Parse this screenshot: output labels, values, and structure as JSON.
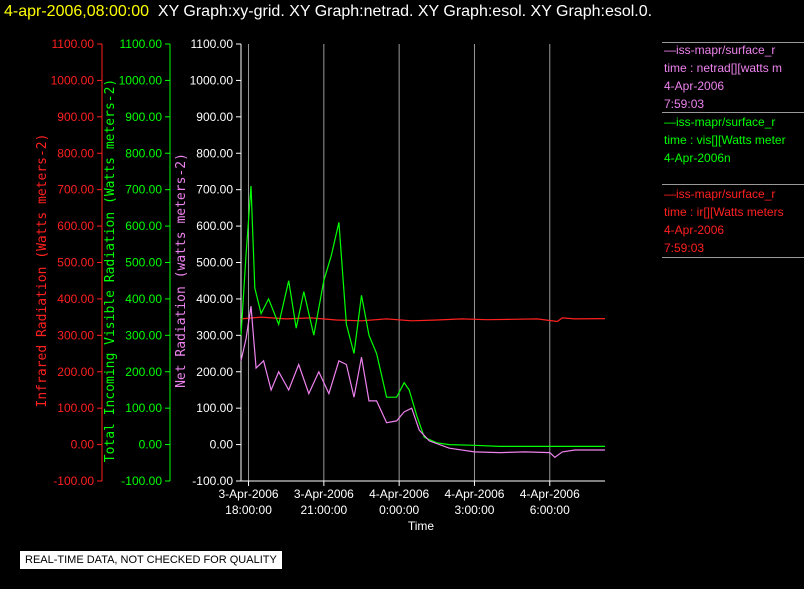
{
  "header": {
    "timestamp": "4-apr-2006,08:00:00",
    "graphs": "XY Graph:xy-grid.  XY Graph:netrad.  XY Graph:esol.  XY Graph:esol.0."
  },
  "legend": [
    {
      "name": "netrad",
      "color": "#ee82ee",
      "lines": [
        "—iss-mapr/surface_r",
        "time : netrad[][watts m",
        "4-Apr-2006",
        "7:59:03"
      ]
    },
    {
      "name": "vis",
      "color": "#00ff00",
      "lines": [
        "—iss-mapr/surface_r",
        "time : vis[][Watts meter",
        "4-Apr-2006n"
      ]
    },
    {
      "name": "ir",
      "color": "#ff2020",
      "lines": [
        "—iss-mapr/surface_r",
        "time : ir[][Watts meters",
        "4-Apr-2006",
        "7:59:03"
      ]
    }
  ],
  "quality_note": "REAL-TIME DATA, NOT CHECKED FOR QUALITY",
  "colors": {
    "ir": "#ff2020",
    "vis": "#00ff00",
    "netrad": "#ee82ee",
    "axis": "#ffffff",
    "grid": "#9a9a9a"
  },
  "chart_data": {
    "type": "line",
    "xlabel": "Time",
    "x_ticks": [
      {
        "hours": 0,
        "date": "3-Apr-2006",
        "time": "18:00:00"
      },
      {
        "hours": 3,
        "date": "3-Apr-2006",
        "time": "21:00:00"
      },
      {
        "hours": 6,
        "date": "4-Apr-2006",
        "time": "0:00:00"
      },
      {
        "hours": 9,
        "date": "4-Apr-2006",
        "time": "3:00:00"
      },
      {
        "hours": 12,
        "date": "4-Apr-2006",
        "time": "6:00:00"
      }
    ],
    "xlim_hours": [
      -0.3,
      14.2
    ],
    "ylim": [
      -100,
      1100
    ],
    "y_ticks": [
      "1100.00",
      "1000.00",
      "900.00",
      "800.00",
      "700.00",
      "600.00",
      "500.00",
      "400.00",
      "300.00",
      "200.00",
      "100.00",
      "0.00",
      "-100.00"
    ],
    "axes": [
      {
        "label": "Infrared Radiation (Watts meters-2)",
        "color": "#ff2020"
      },
      {
        "label": "Total Incoming Visible Radiation (Watts meters-2)",
        "color": "#00ff00"
      },
      {
        "label": "Net Radiation (watts meters-2)",
        "color": "#ee82ee"
      }
    ],
    "grid": true,
    "series": [
      {
        "name": "ir",
        "color": "#ff2020",
        "x": [
          -0.3,
          0.5,
          1.5,
          2.5,
          3.5,
          4.5,
          5.5,
          6.5,
          7.5,
          8.5,
          9.5,
          10.5,
          11.5,
          12.3,
          12.5,
          13,
          14.2
        ],
        "values": [
          345,
          350,
          345,
          348,
          342,
          340,
          345,
          340,
          342,
          345,
          343,
          344,
          345,
          338,
          348,
          345,
          346
        ]
      },
      {
        "name": "vis",
        "color": "#00ff00",
        "x": [
          -0.3,
          -0.1,
          0.1,
          0.25,
          0.5,
          0.8,
          1.2,
          1.6,
          1.9,
          2.2,
          2.6,
          3.0,
          3.3,
          3.6,
          3.9,
          4.2,
          4.5,
          4.8,
          5.1,
          5.5,
          5.9,
          6.2,
          6.4,
          6.7,
          7.0,
          7.5,
          8.0,
          9.0,
          10.0,
          12.0,
          14.2
        ],
        "values": [
          300,
          520,
          710,
          430,
          360,
          400,
          330,
          450,
          320,
          420,
          300,
          450,
          520,
          610,
          330,
          250,
          410,
          300,
          250,
          130,
          130,
          170,
          150,
          80,
          20,
          5,
          0,
          -2,
          -5,
          -5,
          -5
        ]
      },
      {
        "name": "netrad",
        "color": "#ee82ee",
        "x": [
          -0.3,
          -0.1,
          0.1,
          0.3,
          0.6,
          0.9,
          1.2,
          1.6,
          2.0,
          2.4,
          2.8,
          3.2,
          3.6,
          3.9,
          4.2,
          4.5,
          4.8,
          5.1,
          5.5,
          5.9,
          6.2,
          6.5,
          6.8,
          7.2,
          8.0,
          9.0,
          10.0,
          11.0,
          12.0,
          12.2,
          12.5,
          13.0,
          14.2
        ],
        "values": [
          230,
          290,
          380,
          210,
          230,
          150,
          200,
          150,
          220,
          140,
          200,
          140,
          230,
          220,
          130,
          240,
          120,
          120,
          60,
          65,
          90,
          100,
          40,
          10,
          -10,
          -20,
          -22,
          -20,
          -22,
          -35,
          -20,
          -15,
          -15
        ]
      }
    ]
  }
}
